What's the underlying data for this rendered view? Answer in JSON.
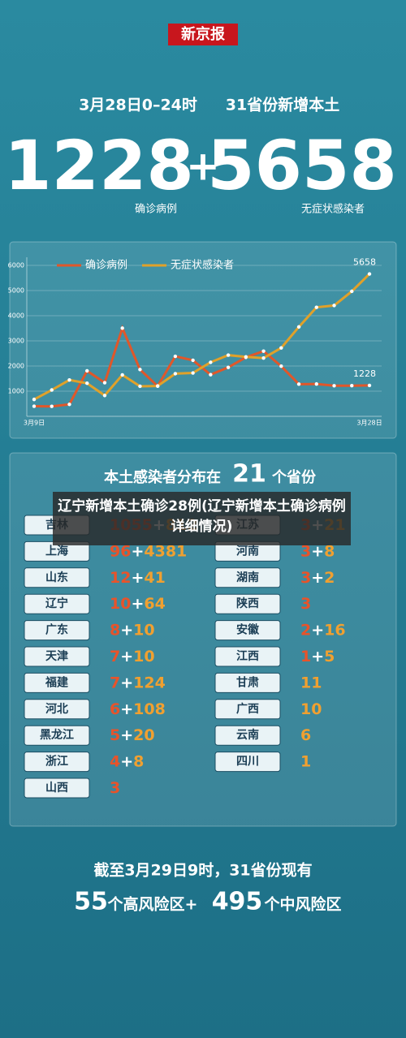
{
  "header": {
    "brand": "新京报",
    "date": "3月28日0–24时",
    "scope": "31省份新增本土"
  },
  "totals": {
    "confirmed": "1228",
    "confirmed_label": "确诊病例",
    "plus": "+",
    "asymptomatic": "5658",
    "asymptomatic_label": "无症状感染者"
  },
  "chart_data": {
    "type": "line",
    "categories": [
      "3月9日",
      null,
      null,
      null,
      null,
      null,
      null,
      null,
      null,
      null,
      null,
      null,
      null,
      null,
      null,
      null,
      null,
      null,
      null,
      "3月28日"
    ],
    "series": [
      {
        "name": "确诊病例",
        "color": "#e0572a",
        "values": [
          402,
          397,
          476,
          1807,
          1337,
          3507,
          1860,
          1200,
          2386,
          2228,
          1656,
          1947,
          2345,
          2591,
          1993,
          1280,
          1286,
          1217,
          1219,
          1228
        ]
      },
      {
        "name": "无症状感染者",
        "color": "#e0a12a",
        "values": [
          673,
          1048,
          1447,
          1315,
          830,
          1647,
          1194,
          1206,
          1697,
          1725,
          2148,
          2433,
          2363,
          2315,
          2719,
          3554,
          4333,
          4407,
          4969,
          5658
        ]
      }
    ],
    "ylim": [
      0,
      6000
    ],
    "yticks": [
      1000,
      2000,
      3000,
      4000,
      5000,
      6000
    ],
    "grid": true
  },
  "distribution": {
    "title_before": "本土感染者分布在",
    "count": "21",
    "title_after": "个省份",
    "plus": "+",
    "provinces": [
      {
        "name": "吉林",
        "confirmed": "1055",
        "asymptomatic": "812"
      },
      {
        "name": "上海",
        "confirmed": "96",
        "asymptomatic": "4381"
      },
      {
        "name": "山东",
        "confirmed": "12",
        "asymptomatic": "41"
      },
      {
        "name": "辽宁",
        "confirmed": "10",
        "asymptomatic": "64"
      },
      {
        "name": "广东",
        "confirmed": "8",
        "asymptomatic": "10"
      },
      {
        "name": "天津",
        "confirmed": "7",
        "asymptomatic": "10"
      },
      {
        "name": "福建",
        "confirmed": "7",
        "asymptomatic": "124"
      },
      {
        "name": "河北",
        "confirmed": "6",
        "asymptomatic": "108"
      },
      {
        "name": "黑龙江",
        "confirmed": "5",
        "asymptomatic": "20"
      },
      {
        "name": "浙江",
        "confirmed": "4",
        "asymptomatic": "8"
      },
      {
        "name": "山西",
        "confirmed": "3"
      },
      {
        "name": "江苏",
        "confirmed": "3",
        "asymptomatic": "21"
      },
      {
        "name": "河南",
        "confirmed": "3",
        "asymptomatic": "8"
      },
      {
        "name": "湖南",
        "confirmed": "3",
        "asymptomatic": "2"
      },
      {
        "name": "陕西",
        "confirmed": "3"
      },
      {
        "name": "安徽",
        "confirmed": "2",
        "asymptomatic": "16"
      },
      {
        "name": "江西",
        "confirmed": "1",
        "asymptomatic": "5"
      },
      {
        "name": "甘肃",
        "asymptomatic": "11"
      },
      {
        "name": "广西",
        "asymptomatic": "10"
      },
      {
        "name": "云南",
        "asymptomatic": "6"
      },
      {
        "name": "四川",
        "asymptomatic": "1"
      }
    ]
  },
  "overlay": "辽宁新增本土确诊28例(辽宁新增本土确诊病例详细情况)",
  "footer": {
    "line1": "截至3月29日9时，31省份现有",
    "high": "55",
    "high_label": "个高风险区+",
    "medium": "495",
    "medium_label": "个中风险区"
  }
}
